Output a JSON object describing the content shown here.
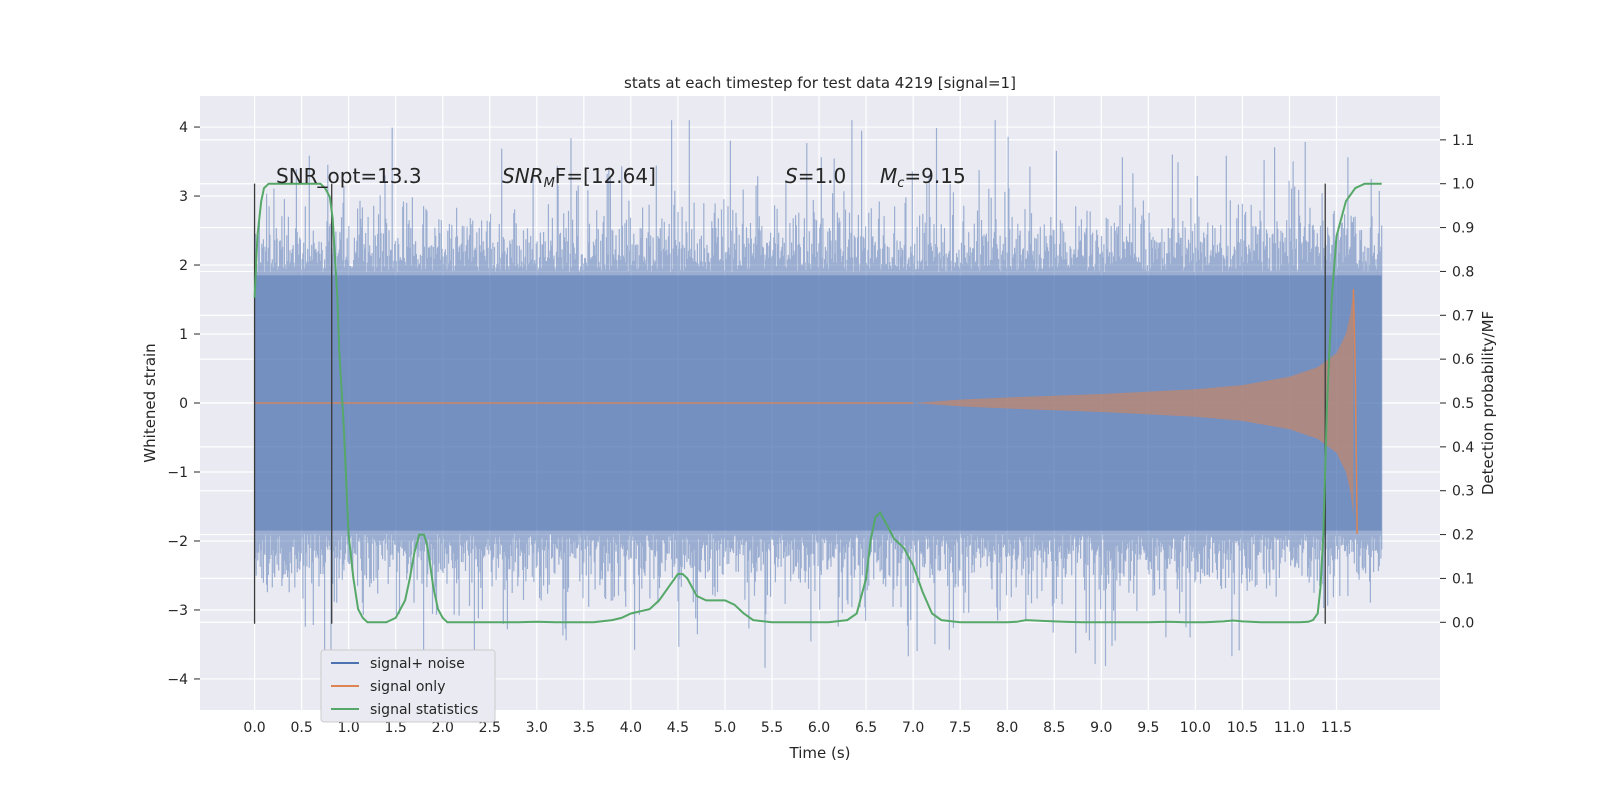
{
  "chart_data": {
    "type": "line",
    "title": "stats at each timestep for test data 4219 [signal=1]",
    "xlabel": "Time (s)",
    "ylabel": "Whitened strain",
    "ylabel_right": "Detection probability/MF",
    "xlim": [
      -0.58,
      12.6
    ],
    "ylim": [
      -4.45,
      4.45
    ],
    "ylim_right": [
      -0.2,
      1.2
    ],
    "x_ticks": [
      "0.0",
      "0.5",
      "1.0",
      "1.5",
      "2.0",
      "2.5",
      "3.0",
      "3.5",
      "4.0",
      "4.5",
      "5.0",
      "5.5",
      "6.0",
      "6.5",
      "7.0",
      "7.5",
      "8.0",
      "8.5",
      "9.0",
      "9.5",
      "10.0",
      "10.5",
      "11.0",
      "11.5"
    ],
    "y_ticks": [
      "4",
      "3",
      "2",
      "1",
      "0",
      "−1",
      "−2",
      "−3",
      "−4"
    ],
    "y_ticks_right": [
      "1.1",
      "1.0",
      "0.9",
      "0.8",
      "0.7",
      "0.6",
      "0.5",
      "0.4",
      "0.3",
      "0.2",
      "0.1",
      "0.0"
    ],
    "grid": true,
    "legend_placement": "lower-left",
    "annotations": {
      "snr_opt": "SNR_opt=13.3",
      "snr_mf_prefix": "SNR",
      "snr_mf_sub": "M",
      "snr_mf_suffix": "F=[12.64]",
      "s_prefix": "S",
      "s_value": "=1.0",
      "mc_prefix": "M",
      "mc_sub": "c",
      "mc_value": "=9.15"
    },
    "vertical_lines_x": [
      0.0,
      0.82,
      11.38
    ],
    "noise_envelope": {
      "x_range": [
        0.0,
        11.98
      ],
      "typical_amplitude": 1.9,
      "max_positive": 4.1,
      "min_negative": -4.1
    },
    "series": [
      {
        "name": "signal+ noise",
        "color": "#4c72b0",
        "description_values": "dense noise between about -2.5 and 2.5, spikes to ±4"
      },
      {
        "name": "signal only",
        "color": "#dd8452",
        "chirp_points": [
          [
            0.0,
            0.0
          ],
          [
            7.0,
            0.0
          ],
          [
            7.5,
            0.05
          ],
          [
            8.0,
            0.08
          ],
          [
            9.0,
            0.13
          ],
          [
            10.0,
            0.2
          ],
          [
            10.5,
            0.26
          ],
          [
            11.0,
            0.38
          ],
          [
            11.3,
            0.52
          ],
          [
            11.5,
            0.72
          ],
          [
            11.6,
            1.0
          ],
          [
            11.65,
            1.3
          ],
          [
            11.68,
            1.65
          ],
          [
            11.7,
            0.4
          ],
          [
            11.72,
            -1.9
          ]
        ]
      },
      {
        "name": "signal statistics",
        "color": "#55a868",
        "x": [
          0.0,
          0.03,
          0.07,
          0.1,
          0.15,
          0.2,
          0.3,
          0.4,
          0.5,
          0.6,
          0.7,
          0.75,
          0.8,
          0.83,
          0.85,
          0.88,
          0.9,
          0.95,
          1.0,
          1.05,
          1.1,
          1.15,
          1.2,
          1.3,
          1.4,
          1.5,
          1.6,
          1.65,
          1.7,
          1.75,
          1.8,
          1.83,
          1.86,
          1.9,
          1.95,
          2.0,
          2.05,
          2.1,
          2.2,
          2.4,
          2.6,
          2.8,
          3.0,
          3.2,
          3.4,
          3.6,
          3.8,
          3.9,
          4.0,
          4.1,
          4.2,
          4.3,
          4.4,
          4.5,
          4.55,
          4.6,
          4.65,
          4.7,
          4.8,
          4.9,
          5.0,
          5.1,
          5.2,
          5.3,
          5.5,
          5.7,
          5.9,
          6.1,
          6.3,
          6.4,
          6.5,
          6.55,
          6.6,
          6.65,
          6.7,
          6.75,
          6.8,
          6.9,
          7.0,
          7.1,
          7.2,
          7.3,
          7.5,
          7.8,
          8.0,
          8.1,
          8.2,
          8.4,
          8.6,
          8.8,
          9.0,
          9.3,
          9.5,
          9.7,
          9.9,
          10.1,
          10.3,
          10.4,
          10.5,
          10.7,
          10.9,
          11.1,
          11.2,
          11.25,
          11.3,
          11.33,
          11.36,
          11.4,
          11.45,
          11.5,
          11.6,
          11.7,
          11.8,
          11.9,
          11.98
        ],
        "y": [
          0.74,
          0.88,
          0.96,
          0.99,
          1.0,
          1.0,
          1.0,
          1.0,
          1.0,
          1.0,
          1.0,
          0.99,
          0.97,
          0.92,
          0.85,
          0.74,
          0.62,
          0.44,
          0.2,
          0.1,
          0.03,
          0.01,
          0.0,
          0.0,
          0.0,
          0.01,
          0.05,
          0.1,
          0.16,
          0.2,
          0.2,
          0.18,
          0.14,
          0.08,
          0.03,
          0.01,
          0.0,
          0.0,
          0.0,
          0.0,
          0.0,
          0.0,
          0.001,
          0.0,
          0.0,
          0.0,
          0.005,
          0.01,
          0.02,
          0.025,
          0.03,
          0.05,
          0.08,
          0.11,
          0.11,
          0.1,
          0.08,
          0.06,
          0.05,
          0.05,
          0.05,
          0.04,
          0.02,
          0.005,
          0.0,
          0.0,
          0.0,
          0.0,
          0.005,
          0.02,
          0.1,
          0.19,
          0.24,
          0.25,
          0.23,
          0.21,
          0.19,
          0.17,
          0.13,
          0.07,
          0.02,
          0.005,
          0.0,
          0.0,
          0.0,
          0.001,
          0.005,
          0.003,
          0.001,
          0.0,
          0.0,
          0.0,
          0.0,
          0.001,
          0.0,
          0.0,
          0.002,
          0.004,
          0.002,
          0.0,
          0.0,
          0.0,
          0.001,
          0.005,
          0.02,
          0.08,
          0.2,
          0.5,
          0.74,
          0.88,
          0.96,
          0.99,
          1.0,
          1.0,
          1.0
        ]
      }
    ]
  }
}
